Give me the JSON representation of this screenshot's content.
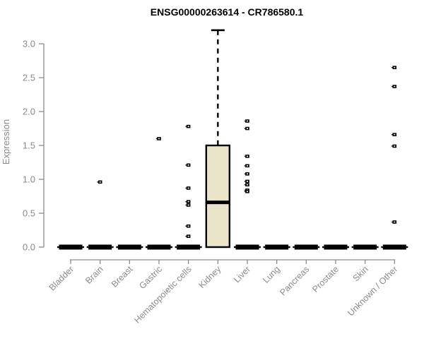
{
  "chart_data": {
    "type": "box",
    "title": "ENSG00000263614 - CR786580.1",
    "ylabel": "Expression",
    "xlabel": "",
    "ylim": [
      0,
      3.2
    ],
    "yticks": [
      "0.0",
      "0.5",
      "1.0",
      "1.5",
      "2.0",
      "2.5",
      "3.0"
    ],
    "grid": false,
    "legend": false,
    "categories": [
      "Bladder",
      "Brain",
      "Breast",
      "Gastric",
      "Hematopoietic cells",
      "Kidney",
      "Liver",
      "Lung",
      "Pancreas",
      "Prostate",
      "Skin",
      "Unknown / Other"
    ],
    "boxes": [
      {
        "category": "Bladder",
        "q1": 0,
        "median": 0,
        "q3": 0,
        "whisker_low": 0,
        "whisker_high": 0,
        "outliers": []
      },
      {
        "category": "Brain",
        "q1": 0,
        "median": 0,
        "q3": 0,
        "whisker_low": 0,
        "whisker_high": 0,
        "outliers": [
          0.96
        ]
      },
      {
        "category": "Breast",
        "q1": 0,
        "median": 0,
        "q3": 0,
        "whisker_low": 0,
        "whisker_high": 0,
        "outliers": []
      },
      {
        "category": "Gastric",
        "q1": 0,
        "median": 0,
        "q3": 0,
        "whisker_low": 0,
        "whisker_high": 0,
        "outliers": [
          1.6
        ]
      },
      {
        "category": "Hematopoietic cells",
        "q1": 0,
        "median": 0,
        "q3": 0,
        "whisker_low": 0,
        "whisker_high": 0,
        "outliers": [
          1.78,
          1.21,
          0.87,
          0.67,
          0.62,
          0.31,
          0.16
        ]
      },
      {
        "category": "Kidney",
        "q1": 0,
        "median": 0.66,
        "q3": 1.5,
        "whisker_low": 0,
        "whisker_high": 3.2,
        "outliers": []
      },
      {
        "category": "Liver",
        "q1": 0,
        "median": 0,
        "q3": 0,
        "whisker_low": 0,
        "whisker_high": 0,
        "outliers": [
          1.86,
          1.75,
          1.34,
          1.2,
          1.08,
          0.97,
          0.92,
          0.84,
          0.82
        ]
      },
      {
        "category": "Lung",
        "q1": 0,
        "median": 0,
        "q3": 0,
        "whisker_low": 0,
        "whisker_high": 0,
        "outliers": []
      },
      {
        "category": "Pancreas",
        "q1": 0,
        "median": 0,
        "q3": 0,
        "whisker_low": 0,
        "whisker_high": 0,
        "outliers": []
      },
      {
        "category": "Prostate",
        "q1": 0,
        "median": 0,
        "q3": 0,
        "whisker_low": 0,
        "whisker_high": 0,
        "outliers": []
      },
      {
        "category": "Skin",
        "q1": 0,
        "median": 0,
        "q3": 0,
        "whisker_low": 0,
        "whisker_high": 0,
        "outliers": []
      },
      {
        "category": "Unknown / Other",
        "q1": 0,
        "median": 0,
        "q3": 0,
        "whisker_low": 0,
        "whisker_high": 0,
        "outliers": [
          2.65,
          2.37,
          1.66,
          1.49,
          0.37
        ]
      }
    ],
    "colors": {
      "box_fill": "#EAE4C8",
      "box_border": "#000000",
      "median": "#000000",
      "whisker": "#000000",
      "outlier": "#000000",
      "axis": "#8B8B8B",
      "tick_text": "#8B8B8B",
      "title_text": "#000000",
      "background": "#FFFFFF"
    }
  }
}
